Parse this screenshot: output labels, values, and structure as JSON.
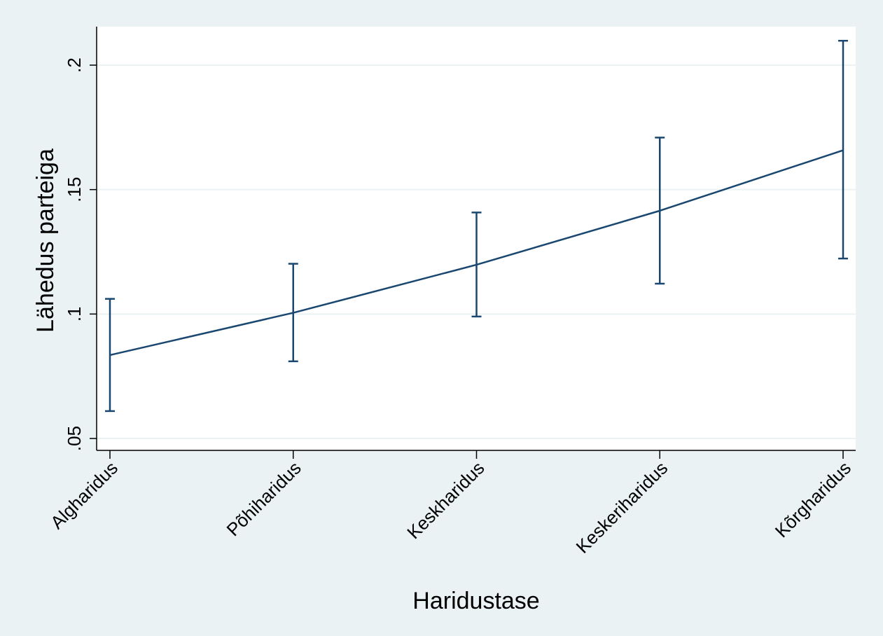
{
  "chart_data": {
    "type": "line",
    "title": "",
    "xlabel": "Haridustase",
    "ylabel": "Lähedus parteiga",
    "categories": [
      "Algharidus",
      "Põhiharidus",
      "Keskharidus",
      "Keskeriharidus",
      "Kõrgharidus"
    ],
    "yticks": [
      {
        "value": 0.05,
        "label": ".05"
      },
      {
        "value": 0.1,
        "label": ".1"
      },
      {
        "value": 0.15,
        "label": ".15"
      },
      {
        "value": 0.2,
        "label": ".2"
      }
    ],
    "ylim": [
      0.045,
      0.215
    ],
    "grid": true,
    "series": [
      {
        "values": [
          0.0835,
          0.1005,
          0.1198,
          0.1415,
          0.1658
        ],
        "ci_low": [
          0.061,
          0.081,
          0.099,
          0.1122,
          0.1223
        ],
        "ci_high": [
          0.1061,
          0.1202,
          0.1408,
          0.1709,
          0.2098
        ]
      }
    ],
    "colors": {
      "outer_background": "#eaf2f3",
      "plot_background": "#ffffff",
      "grid": "#eaf2f3",
      "series": "#1a476f",
      "axis": "#000000"
    }
  }
}
